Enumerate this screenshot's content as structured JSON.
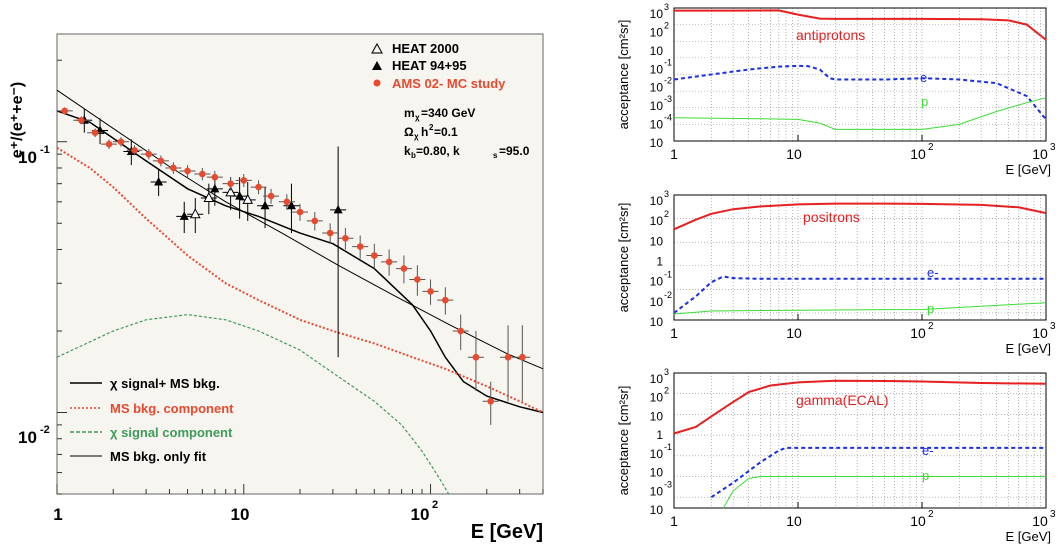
{
  "left": {
    "ylabel": "e⁺/(e⁺+e⁻)",
    "xlabel": "E [GeV]",
    "xticks": [
      "1",
      "10",
      "10"
    ],
    "xtick_sup": [
      "",
      "",
      "2"
    ],
    "yticks": [
      "10",
      "10"
    ],
    "ytick_sup": [
      "-1",
      "-2"
    ],
    "legend_top": [
      {
        "label": "HEAT 2000",
        "marker": "open-triangle",
        "color": "#1a1a1a"
      },
      {
        "label": "HEAT 94+95",
        "marker": "filled-triangle",
        "color": "#000000"
      },
      {
        "label": "AMS 02- MC study",
        "marker": "dot",
        "color": "#e8492f"
      }
    ],
    "params": [
      "m",
      "χ",
      "=340 GeV",
      "Ω",
      "χ",
      "h",
      "2",
      "=0.1",
      "k",
      "b",
      "=0.80, k",
      "s",
      "=95.0"
    ],
    "legend_bottom": [
      {
        "label": "χ signal+ MS bkg.",
        "color": "#000000",
        "style": "solid"
      },
      {
        "label": "MS bkg. component",
        "color": "#e8492f",
        "style": "dotted"
      },
      {
        "label": "χ signal component",
        "color": "#3f9a5b",
        "style": "dashed"
      },
      {
        "label": "MS bkg. only fit",
        "color": "#000000",
        "style": "solid"
      }
    ]
  },
  "right": {
    "ylabel": "acceptance [cm²sr]",
    "xlabel": "E [GeV]",
    "xticks": [
      "1",
      "10",
      "10",
      "10"
    ],
    "xtick_sup": [
      "",
      "",
      "2",
      "3"
    ],
    "panels": [
      {
        "title": "antiprotons",
        "labels": {
          "e": "e-",
          "p": "p"
        },
        "yticks": [
          {
            "b": "10",
            "s": "3"
          },
          {
            "b": "10",
            "s": "2"
          },
          {
            "b": "10",
            "s": ""
          },
          {
            "b": "10",
            "s": "-1"
          },
          {
            "b": "10",
            "s": "-2"
          },
          {
            "b": "10",
            "s": "-3"
          },
          {
            "b": "10",
            "s": "-4"
          },
          {
            "b": "10",
            "s": ""
          }
        ]
      },
      {
        "title": "positrons",
        "labels": {
          "e": "e-",
          "p": "p"
        },
        "yticks": [
          {
            "b": "10",
            "s": "3"
          },
          {
            "b": "10",
            "s": "2"
          },
          {
            "b": "10",
            "s": ""
          },
          {
            "b": "1",
            "s": ""
          },
          {
            "b": "10",
            "s": "-1"
          },
          {
            "b": "10",
            "s": "-2"
          },
          {
            "b": "10",
            "s": ""
          }
        ]
      },
      {
        "title": "gamma(ECAL)",
        "labels": {
          "e": "e-",
          "p": "p"
        },
        "yticks": [
          {
            "b": "10",
            "s": "3"
          },
          {
            "b": "10",
            "s": "2"
          },
          {
            "b": "10",
            "s": ""
          },
          {
            "b": "1",
            "s": ""
          },
          {
            "b": "10",
            "s": "-1"
          },
          {
            "b": "10",
            "s": ""
          },
          {
            "b": "10",
            "s": "-3"
          },
          {
            "b": "10",
            "s": ""
          }
        ]
      }
    ]
  },
  "chart_data": [
    {
      "type": "scatter",
      "title": "",
      "xlabel": "E [GeV]",
      "ylabel": "e+/(e++e-)",
      "xscale": "log",
      "yscale": "log",
      "xlim": [
        1,
        400
      ],
      "ylim": [
        0.005,
        0.25
      ],
      "series": [
        {
          "name": "HEAT 2000",
          "kind": "points",
          "x": [
            5.5,
            6.5,
            8.5,
            10.5
          ],
          "y": [
            0.054,
            0.062,
            0.065,
            0.061
          ],
          "yerr": [
            0.008,
            0.008,
            0.009,
            0.01
          ]
        },
        {
          "name": "HEAT 94+95",
          "kind": "points",
          "x": [
            1.4,
            1.7,
            2.5,
            3.5,
            4.8,
            7.0,
            9.5,
            13,
            18,
            32
          ],
          "y": [
            0.12,
            0.11,
            0.092,
            0.071,
            0.053,
            0.067,
            0.063,
            0.058,
            0.058,
            0.056
          ],
          "yerr": [
            0.012,
            0.012,
            0.01,
            0.008,
            0.007,
            0.009,
            0.011,
            0.01,
            0.012,
            0.04
          ]
        },
        {
          "name": "AMS 02- MC study",
          "kind": "points",
          "x": [
            1.1,
            1.35,
            1.6,
            1.9,
            2.2,
            2.6,
            3.1,
            3.6,
            4.2,
            5,
            6,
            7,
            8.5,
            10,
            12,
            14,
            17,
            20,
            24,
            29,
            35,
            42,
            50,
            60,
            72,
            85,
            100,
            120,
            145,
            175,
            210,
            260,
            310
          ],
          "y": [
            0.13,
            0.12,
            0.108,
            0.098,
            0.1,
            0.093,
            0.09,
            0.085,
            0.08,
            0.078,
            0.076,
            0.074,
            0.07,
            0.072,
            0.068,
            0.063,
            0.06,
            0.055,
            0.051,
            0.046,
            0.044,
            0.041,
            0.038,
            0.036,
            0.034,
            0.031,
            0.028,
            0.026,
            0.02,
            0.016,
            0.011,
            0.016,
            0.016
          ],
          "yerr": [
            0.004,
            0.004,
            0.004,
            0.004,
            0.004,
            0.004,
            0.004,
            0.004,
            0.004,
            0.004,
            0.004,
            0.004,
            0.004,
            0.004,
            0.004,
            0.004,
            0.004,
            0.004,
            0.004,
            0.004,
            0.004,
            0.004,
            0.004,
            0.004,
            0.004,
            0.004,
            0.003,
            0.003,
            0.003,
            0.004,
            0.002,
            0.005,
            0.005
          ]
        },
        {
          "name": "χ signal+ MS bkg.",
          "kind": "line",
          "x": [
            1,
            1.5,
            2,
            3,
            5,
            8,
            12,
            20,
            30,
            50,
            80,
            100,
            120,
            150,
            200,
            300,
            400
          ],
          "y": [
            0.13,
            0.118,
            0.103,
            0.085,
            0.067,
            0.058,
            0.053,
            0.046,
            0.042,
            0.034,
            0.025,
            0.02,
            0.016,
            0.013,
            0.0115,
            0.0105,
            0.01
          ]
        },
        {
          "name": "MS bkg. component",
          "kind": "line",
          "x": [
            1,
            1.5,
            2,
            3,
            5,
            8,
            12,
            20,
            30,
            50,
            80,
            120,
            200,
            300,
            400
          ],
          "y": [
            0.095,
            0.08,
            0.068,
            0.052,
            0.038,
            0.03,
            0.026,
            0.022,
            0.02,
            0.018,
            0.016,
            0.0145,
            0.0125,
            0.011,
            0.01
          ]
        },
        {
          "name": "χ signal component",
          "kind": "line",
          "x": [
            1,
            2,
            3,
            5,
            8,
            12,
            20,
            30,
            50,
            70,
            90,
            110,
            125
          ],
          "y": [
            0.016,
            0.02,
            0.022,
            0.023,
            0.022,
            0.02,
            0.017,
            0.014,
            0.011,
            0.009,
            0.0072,
            0.0058,
            0.005
          ]
        },
        {
          "name": "MS bkg. only fit",
          "kind": "line",
          "x": [
            1,
            2,
            4,
            8,
            16,
            32,
            64,
            128,
            256,
            400
          ],
          "y": [
            0.155,
            0.112,
            0.081,
            0.06,
            0.046,
            0.035,
            0.027,
            0.021,
            0.0165,
            0.0145
          ]
        }
      ]
    },
    {
      "type": "line",
      "title": "antiprotons",
      "xlabel": "E [GeV]",
      "ylabel": "acceptance [cm2sr]",
      "xscale": "log",
      "yscale": "log",
      "xlim": [
        1,
        1000
      ],
      "ylim": [
        1e-05,
        1000
      ],
      "series": [
        {
          "name": "antiprotons",
          "x": [
            1,
            3,
            7,
            10,
            15,
            20,
            50,
            100,
            300,
            500,
            700,
            1000
          ],
          "y": [
            700,
            700,
            720,
            400,
            230,
            220,
            220,
            220,
            210,
            180,
            100,
            12
          ]
        },
        {
          "name": "e-",
          "x": [
            1,
            2,
            4,
            7,
            10,
            12,
            15,
            18,
            20,
            30,
            50,
            100,
            200,
            400,
            700,
            1000
          ],
          "y": [
            0.05,
            0.1,
            0.2,
            0.3,
            0.33,
            0.32,
            0.2,
            0.06,
            0.05,
            0.05,
            0.05,
            0.06,
            0.05,
            0.03,
            0.005,
            0.0002
          ]
        },
        {
          "name": "p",
          "x": [
            1,
            5,
            10,
            15,
            20,
            50,
            100,
            200,
            400,
            700,
            1000
          ],
          "y": [
            0.00025,
            0.00022,
            0.0002,
            0.00012,
            5e-05,
            5e-05,
            5e-05,
            0.0001,
            0.0006,
            0.002,
            0.004
          ]
        }
      ]
    },
    {
      "type": "line",
      "title": "positrons",
      "xlabel": "E [GeV]",
      "ylabel": "acceptance [cm2sr]",
      "xscale": "log",
      "yscale": "log",
      "xlim": [
        1,
        1000
      ],
      "ylim": [
        0.005,
        1000
      ],
      "series": [
        {
          "name": "positrons",
          "x": [
            1,
            1.5,
            2,
            3,
            5,
            10,
            20,
            50,
            100,
            300,
            600,
            1000
          ],
          "y": [
            35,
            90,
            160,
            250,
            330,
            400,
            430,
            430,
            420,
            380,
            300,
            170
          ]
        },
        {
          "name": "e-",
          "x": [
            1,
            1.5,
            2,
            2.5,
            3,
            5,
            10,
            100,
            1000
          ],
          "y": [
            0.01,
            0.05,
            0.2,
            0.35,
            0.3,
            0.28,
            0.28,
            0.28,
            0.28
          ]
        },
        {
          "name": "p",
          "x": [
            1,
            2,
            10,
            100,
            1000
          ],
          "y": [
            0.009,
            0.012,
            0.013,
            0.014,
            0.027
          ]
        }
      ]
    },
    {
      "type": "line",
      "title": "gamma(ECAL)",
      "xlabel": "E [GeV]",
      "ylabel": "acceptance [cm2sr]",
      "xscale": "log",
      "yscale": "log",
      "xlim": [
        1,
        1000
      ],
      "ylim": [
        0.0003,
        1000
      ],
      "series": [
        {
          "name": "gamma(ECAL)",
          "x": [
            1,
            1.5,
            2,
            3,
            4,
            6,
            10,
            20,
            50,
            100,
            300,
            1000
          ],
          "y": [
            1.2,
            2.5,
            8,
            40,
            120,
            250,
            350,
            420,
            410,
            390,
            330,
            300
          ]
        },
        {
          "name": "e-",
          "x": [
            2,
            3,
            5,
            7,
            8,
            10,
            100,
            1000
          ],
          "y": [
            0.001,
            0.005,
            0.05,
            0.18,
            0.24,
            0.24,
            0.24,
            0.24
          ]
        },
        {
          "name": "p",
          "x": [
            2.5,
            3,
            4,
            5,
            10,
            100,
            1000
          ],
          "y": [
            0.0003,
            0.002,
            0.008,
            0.01,
            0.01,
            0.01,
            0.01
          ]
        }
      ]
    }
  ]
}
